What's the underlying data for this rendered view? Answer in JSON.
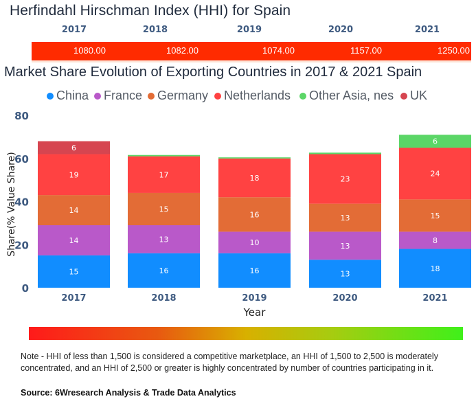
{
  "hhi": {
    "title": "Herfindahl Hirschman Index (HHI) for Spain",
    "years": [
      "2017",
      "2018",
      "2019",
      "2020",
      "2021"
    ],
    "values": [
      "1080.00",
      "1082.00",
      "1074.00",
      "1157.00",
      "1250.00"
    ],
    "bar_color": "#ff2b00"
  },
  "chart_data": {
    "type": "bar",
    "stacked": true,
    "title": "Market Share Evolution of Exporting Countries in 2017 & 2021 Spain",
    "xlabel": "Year",
    "ylabel": "Share(% Value Share)",
    "categories": [
      "2017",
      "2018",
      "2019",
      "2020",
      "2021"
    ],
    "ylim": [
      0,
      80
    ],
    "yticks": [
      0,
      20,
      40,
      60,
      80
    ],
    "grid": false,
    "legend_position": "top",
    "series": [
      {
        "name": "China",
        "color": "#118dff",
        "values": [
          15,
          16,
          16,
          13,
          18
        ],
        "labels": [
          "15",
          "16",
          "16",
          "13",
          "18"
        ]
      },
      {
        "name": "France",
        "color": "#b959c9",
        "values": [
          14,
          13,
          10,
          13,
          8
        ],
        "labels": [
          "14",
          "13",
          "10",
          "13",
          "8"
        ]
      },
      {
        "name": "Germany",
        "color": "#e36c36",
        "values": [
          14,
          15,
          16,
          13,
          15
        ],
        "labels": [
          "14",
          "15",
          "16",
          "13",
          "15"
        ]
      },
      {
        "name": "Netherlands",
        "color": "#ff4242",
        "values": [
          19,
          17,
          18,
          23,
          24
        ],
        "labels": [
          "19",
          "17",
          "18",
          "23",
          "24"
        ]
      },
      {
        "name": "Other Asia, nes",
        "color": "#5bd667",
        "values": [
          0,
          0.6,
          0.5,
          0.7,
          6
        ],
        "labels": [
          "",
          "",
          "",
          "",
          "6"
        ]
      },
      {
        "name": "UK",
        "color": "#d64550",
        "values": [
          6,
          0,
          0,
          0,
          0
        ],
        "labels": [
          "6",
          "",
          "",
          "",
          ""
        ]
      }
    ]
  },
  "scale": {
    "gradient_colors": [
      "#ff1a1a",
      "#e85a10",
      "#d8b000",
      "#a6cc10",
      "#3ff01a"
    ]
  },
  "footer": {
    "note": "Note - HHI of less than 1,500 is considered a competitive marketplace, an HHI of 1,500 to 2,500 is moderately concentrated, and an HHI of 2,500 or greater is highly concentrated by number of countries participating in it.",
    "source": "Source: 6Wresearch Analysis & Trade Data Analytics"
  }
}
